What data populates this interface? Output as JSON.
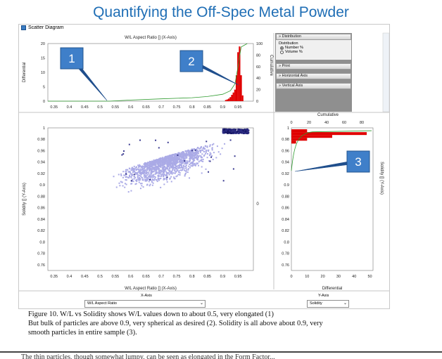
{
  "slide_title": "Quantifying the Off-Spec Metal Powder",
  "window_title": "Scatter Diagram",
  "side_panel": {
    "distribution_header": "Distribution",
    "group_label": "Distribution",
    "options": [
      "Number %",
      "Volume %"
    ],
    "selected": "Number %",
    "print_header": "Print",
    "horizontal_axis_header": "Horizontal Axis",
    "vertical_axis_header": "Vertical Axis"
  },
  "x_selector": {
    "caption": "X-Axis",
    "value": "W/L Aspect Ratio"
  },
  "y_selector": {
    "caption": "Y-Axis",
    "value": "Solidity"
  },
  "callouts": [
    "1",
    "2",
    "3"
  ],
  "caption_lines": [
    "Figure 10. W/L vs Solidity shows W/L values down to about 0.5, very elongated (1)",
    "But bulk of particles are above 0.9, very spherical as desired (2). Solidity is all above about 0.9, very",
    "smooth particles in entire sample (3)."
  ],
  "bottom_text": "The thin particles, though somewhat lumpy, can be seen as elongated in the Form Factor...",
  "chart_data": [
    {
      "type": "bar",
      "title": "W/L Aspect Ratio [] (X-Axis)",
      "ylabel": "Differential",
      "y2label": "Cumulative",
      "x_ticks": [
        "0.35",
        "0.4",
        "0.45",
        "0.5",
        "0.55",
        "0.6",
        "0.65",
        "0.7",
        "0.75",
        "0.8",
        "0.85",
        "0.9",
        "0.95"
      ],
      "ylim": [
        0,
        20
      ],
      "y_ticks": [
        "0",
        "5",
        "10",
        "15",
        "20"
      ],
      "y2lim": [
        0,
        100
      ],
      "y2_ticks": [
        "0",
        "20",
        "40",
        "60",
        "80",
        "100"
      ],
      "hist_x": [
        0.91,
        0.915,
        0.92,
        0.925,
        0.93,
        0.935,
        0.94,
        0.945,
        0.95,
        0.955,
        0.96,
        0.965
      ],
      "hist_values": [
        0.4,
        0.6,
        0.9,
        1.4,
        2.2,
        3.0,
        4.0,
        9.0,
        17.0,
        19.0,
        9.0,
        2.0
      ],
      "cumulative_x": [
        0.33,
        0.53,
        0.6,
        0.7,
        0.8,
        0.85,
        0.9,
        0.925,
        0.94,
        0.95,
        0.96,
        0.98
      ],
      "cumulative_y": [
        0,
        0,
        2,
        4,
        6,
        8,
        12,
        18,
        30,
        60,
        94,
        100
      ]
    },
    {
      "type": "scatter",
      "xlabel": "W/L Aspect Ratio [] (X-Axis)",
      "ylabel": "Solidity [] (Y-Axis)",
      "xlim": [
        0.33,
        1.0
      ],
      "ylim": [
        0.75,
        1.0
      ],
      "x_ticks": [
        "0.35",
        "0.4",
        "0.45",
        "0.5",
        "0.55",
        "0.6",
        "0.65",
        "0.7",
        "0.75",
        "0.8",
        "0.85",
        "0.9",
        "0.95"
      ],
      "y_ticks": [
        "1",
        "0.98",
        "0.96",
        "0.94",
        "0.92",
        "0.9",
        "0.88",
        "0.86",
        "0.84",
        "0.82",
        "0.8",
        "0.78",
        "0.76"
      ],
      "right_label": "0"
    },
    {
      "type": "bar",
      "orientation": "horizontal",
      "title": "Cumulative",
      "xlabel": "Differential",
      "ylabel": "Solidity [] (Y-Axis)",
      "top_ticks": [
        "0",
        "20",
        "40",
        "60",
        "80"
      ],
      "x_ticks": [
        "0",
        "10",
        "20",
        "30",
        "40",
        "50"
      ],
      "xlim": [
        0,
        52
      ],
      "y_ticks": [
        "1",
        "0.98",
        "0.96",
        "0.94",
        "0.92",
        "0.9",
        "0.88",
        "0.86",
        "0.84",
        "0.82",
        "0.8",
        "0.78",
        "0.76"
      ],
      "bins_y": [
        0.995,
        0.99,
        0.985,
        0.98,
        0.975
      ],
      "bin_values": [
        10,
        48,
        26,
        10,
        3
      ]
    }
  ]
}
